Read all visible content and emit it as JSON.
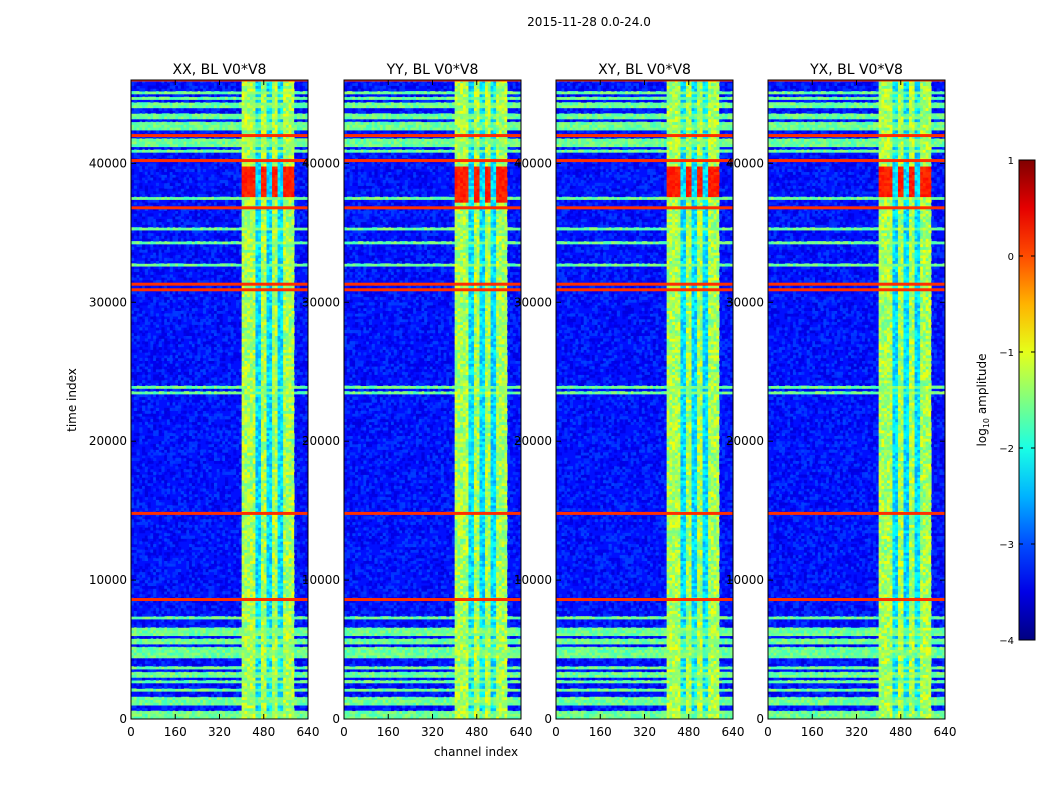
{
  "chart_data": {
    "type": "heatmap",
    "suptitle": "2015-11-28 0.0-24.0",
    "xlabel": "channel index",
    "ylabel": "time index",
    "xlim": [
      0,
      640
    ],
    "ylim": [
      0,
      46000
    ],
    "xticks": [
      0,
      160,
      320,
      480,
      640
    ],
    "xtick_labels": [
      "0",
      "160",
      "320",
      "480",
      "640"
    ],
    "yticks": [
      0,
      10000,
      20000,
      30000,
      40000
    ],
    "ytick_labels": [
      "0",
      "10000",
      "20000",
      "30000",
      "40000"
    ],
    "panels": [
      {
        "title": "XX, BL V0*V8",
        "red_band_rows": [
          37500,
          39800
        ]
      },
      {
        "title": "YY, BL V0*V8",
        "red_band_rows": [
          37200,
          39800
        ]
      },
      {
        "title": "XY, BL V0*V8",
        "red_band_rows": [
          37500,
          39800
        ]
      },
      {
        "title": "YX, BL V0*V8",
        "red_band_rows": [
          37500,
          39800
        ]
      }
    ],
    "colorbar": {
      "label": "log10 amplitude",
      "label_main": "log",
      "label_sub": "10",
      "label_rest": " amplitude",
      "range": [
        -4,
        1
      ],
      "ticks": [
        -4,
        -3,
        -2,
        -1,
        0,
        1
      ],
      "tick_labels": [
        "−4",
        "−3",
        "−2",
        "−1",
        "0",
        "1"
      ],
      "colormap": "jet"
    },
    "structure": {
      "bright_channel_range": [
        400,
        590
      ],
      "bright_channel_columns": [
        [
          400,
          445
        ],
        [
          470,
          490
        ],
        [
          510,
          530
        ],
        [
          548,
          565
        ],
        [
          575,
          590
        ]
      ],
      "flagged_time_rows": [
        8600,
        14800,
        30900,
        31300,
        36800,
        40200,
        42000,
        46000
      ],
      "noise_floor_log10": -3.3
    }
  }
}
